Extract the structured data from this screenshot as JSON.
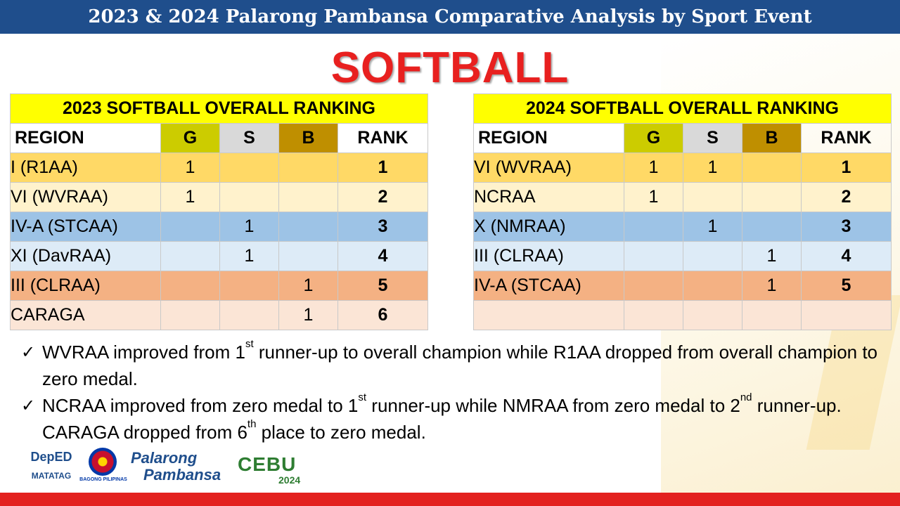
{
  "header": {
    "title": "2023 & 2024 Palarong Pambansa Comparative Analysis by Sport Event"
  },
  "sport_title": "SOFTBALL",
  "columns": {
    "region": "REGION",
    "gold": "G",
    "silver": "S",
    "bronze": "B",
    "rank": "RANK"
  },
  "table_2023": {
    "caption": "2023 SOFTBALL OVERALL RANKING",
    "rows": [
      {
        "region": "I (R1AA)",
        "g": "1",
        "s": "",
        "b": "",
        "rank": "1"
      },
      {
        "region": "VI (WVRAA)",
        "g": "1",
        "s": "",
        "b": "",
        "rank": "2"
      },
      {
        "region": "IV-A (STCAA)",
        "g": "",
        "s": "1",
        "b": "",
        "rank": "3"
      },
      {
        "region": "XI (DavRAA)",
        "g": "",
        "s": "1",
        "b": "",
        "rank": "4"
      },
      {
        "region": "III (CLRAA)",
        "g": "",
        "s": "",
        "b": "1",
        "rank": "5"
      },
      {
        "region": "CARAGA",
        "g": "",
        "s": "",
        "b": "1",
        "rank": "6"
      }
    ]
  },
  "table_2024": {
    "caption": "2024 SOFTBALL OVERALL RANKING",
    "rows": [
      {
        "region": "VI (WVRAA)",
        "g": "1",
        "s": "1",
        "b": "",
        "rank": "1"
      },
      {
        "region": "NCRAA",
        "g": "1",
        "s": "",
        "b": "",
        "rank": "2"
      },
      {
        "region": "X (NMRAA)",
        "g": "",
        "s": "1",
        "b": "",
        "rank": "3"
      },
      {
        "region": "III (CLRAA)",
        "g": "",
        "s": "",
        "b": "1",
        "rank": "4"
      },
      {
        "region": "IV-A (STCAA)",
        "g": "",
        "s": "",
        "b": "1",
        "rank": "5"
      },
      {
        "region": "",
        "g": "",
        "s": "",
        "b": "",
        "rank": ""
      }
    ]
  },
  "notes": [
    {
      "icon": "check-icon",
      "parts": [
        "WVRAA improved from 1",
        "st",
        " runner-up to overall champion while R1AA dropped from overall champion to zero medal."
      ]
    },
    {
      "icon": "check-icon",
      "parts": [
        "NCRAA improved from zero medal to 1",
        "st",
        " runner-up while NMRAA from zero medal to 2",
        "nd",
        " runner-up. CARAGA dropped from 6",
        "th",
        " place to zero medal."
      ]
    }
  ],
  "logos": {
    "deped": "DepED",
    "matatag": "MATATAG",
    "bagong": "BAGONG PILIPINAS",
    "palarong_line1": "Palarong",
    "palarong_line2": "Pambansa",
    "cebu": "CEBU",
    "cebu_year": "2024"
  },
  "colors": {
    "header_bar": "#1f4e8c",
    "title_red": "#e8201f",
    "caption_yellow": "#ffff00",
    "gold": "#cccc00",
    "silver": "#d9d9d9",
    "bronze": "#bf8f00",
    "bottom_bar": "#e3211f"
  }
}
